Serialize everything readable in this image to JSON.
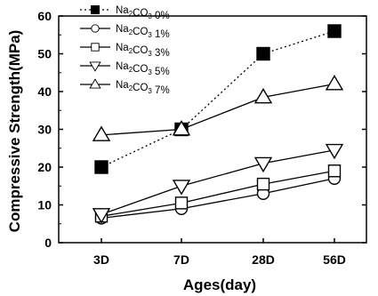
{
  "chart_data": {
    "type": "line",
    "categories": [
      "3D",
      "7D",
      "28D",
      "56D"
    ],
    "xlabel": "Ages(day)",
    "ylabel": "Compressive Strength(MPa)",
    "ylim": [
      0,
      60
    ],
    "yticks": [
      0,
      10,
      20,
      30,
      40,
      50,
      60
    ],
    "grid": false,
    "legend_position": "top-left",
    "series": [
      {
        "name_main": "Na",
        "name_sub1": "2",
        "name_mid": "CO",
        "name_sub2": "3",
        "name_tail": " 0%",
        "marker": "filled-square",
        "line_style": "dotted",
        "values": [
          20,
          30,
          50,
          56
        ]
      },
      {
        "name_main": "Na",
        "name_sub1": "2",
        "name_mid": "CO",
        "name_sub2": "3",
        "name_tail": " 1%",
        "marker": "circle",
        "line_style": "solid",
        "values": [
          6.5,
          9,
          13,
          17
        ]
      },
      {
        "name_main": "Na",
        "name_sub1": "2",
        "name_mid": "CO",
        "name_sub2": "3",
        "name_tail": " 3%",
        "marker": "square",
        "line_style": "solid",
        "values": [
          7,
          10.5,
          15.5,
          19
        ]
      },
      {
        "name_main": "Na",
        "name_sub1": "2",
        "name_mid": "CO",
        "name_sub2": "3",
        "name_tail": " 5%",
        "marker": "triangle-down",
        "line_style": "solid",
        "values": [
          7.5,
          15,
          21,
          24.5
        ]
      },
      {
        "name_main": "Na",
        "name_sub1": "2",
        "name_mid": "CO",
        "name_sub2": "3",
        "name_tail": " 7%",
        "marker": "triangle-up",
        "line_style": "solid",
        "values": [
          28.5,
          30,
          38.5,
          42
        ]
      }
    ]
  }
}
